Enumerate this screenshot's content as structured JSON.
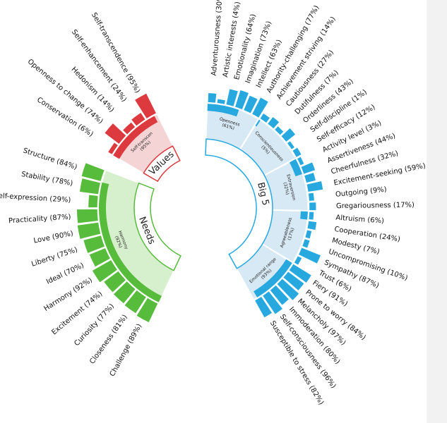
{
  "chart_data": {
    "type": "sunburst",
    "title": "",
    "colors": {
      "big5": "#27a9df",
      "big5_light": "#d7e9f5",
      "needs": "#57bb3c",
      "needs_light": "#d6efcc",
      "values": "#dc3a3f",
      "values_light": "#f5d4d5",
      "red_mid": "#f25b5b"
    },
    "groups": [
      {
        "name": "Big 5",
        "children": [
          {
            "name": "Openness",
            "value": "61%",
            "facets": [
              {
                "name": "Adventurousness",
                "value": 30
              },
              {
                "name": "Artistic interests",
                "value": 4
              },
              {
                "name": "Emotionality",
                "value": 64
              },
              {
                "name": "Imagination",
                "value": 73
              },
              {
                "name": "Intellect",
                "value": 63
              },
              {
                "name": "Authority-challenging",
                "value": 77
              }
            ]
          },
          {
            "name": "Conscientiousness",
            "value": "5%",
            "facets": [
              {
                "name": "Achievement striving",
                "value": 14
              },
              {
                "name": "Cautiousness",
                "value": 27
              },
              {
                "name": "Dutifulness",
                "value": 7
              },
              {
                "name": "Orderliness",
                "value": 43
              },
              {
                "name": "Self-discipline",
                "value": 1
              },
              {
                "name": "Self-efficacy",
                "value": 12
              }
            ]
          },
          {
            "name": "Extraversion",
            "value": "32%",
            "facets": [
              {
                "name": "Activity level",
                "value": 3
              },
              {
                "name": "Assertiveness",
                "value": 44
              },
              {
                "name": "Cheerfulness",
                "value": 32
              },
              {
                "name": "Excitement-seeking",
                "value": 59
              },
              {
                "name": "Outgoing",
                "value": 9
              },
              {
                "name": "Gregariousness",
                "value": 17
              }
            ]
          },
          {
            "name": "Agreeableness",
            "value": "17%",
            "facets": [
              {
                "name": "Altruism",
                "value": 6
              },
              {
                "name": "Cooperation",
                "value": 24
              },
              {
                "name": "Modesty",
                "value": 7
              },
              {
                "name": "Uncompromising",
                "value": 10
              },
              {
                "name": "Sympathy",
                "value": 87
              },
              {
                "name": "Trust",
                "value": 6
              }
            ]
          },
          {
            "name": "Emotional range",
            "value": "93%",
            "facets": [
              {
                "name": "Fiery",
                "value": 91
              },
              {
                "name": "Prone to worry",
                "value": 84
              },
              {
                "name": "Melancholy",
                "value": 97
              },
              {
                "name": "Immoderation",
                "value": 80
              },
              {
                "name": "Self-consciousness",
                "value": 96
              },
              {
                "name": "Susceptible to stress",
                "value": 82
              }
            ]
          }
        ],
        "conscientiousness_arc_label": "Conscientiousness (5%)"
      },
      {
        "name": "Needs",
        "children": [
          {
            "name": "Harmony",
            "value": "92%",
            "facets": [
              {
                "name": "Challenge",
                "value": 89
              },
              {
                "name": "Closeness",
                "value": 81
              },
              {
                "name": "Curiosity",
                "value": 77
              },
              {
                "name": "Excitement",
                "value": 74
              },
              {
                "name": "Harmony",
                "value": 92
              },
              {
                "name": "Ideal",
                "value": 70
              },
              {
                "name": "Liberty",
                "value": 75
              },
              {
                "name": "Love",
                "value": 90
              },
              {
                "name": "Practicality",
                "value": 87
              },
              {
                "name": "Self-expression",
                "value": 29
              },
              {
                "name": "Stability",
                "value": 78
              },
              {
                "name": "Structure",
                "value": 84
              }
            ]
          }
        ]
      },
      {
        "name": "Values",
        "children": [
          {
            "name": "Self-transcen",
            "value": "95%",
            "facets": [
              {
                "name": "Conservation",
                "value": 6
              },
              {
                "name": "Openness to change",
                "value": 74
              },
              {
                "name": "Hedonism",
                "value": 14
              },
              {
                "name": "Self-enhancement",
                "value": 24
              },
              {
                "name": "Self-transcendence",
                "value": 95
              }
            ]
          }
        ]
      }
    ]
  }
}
